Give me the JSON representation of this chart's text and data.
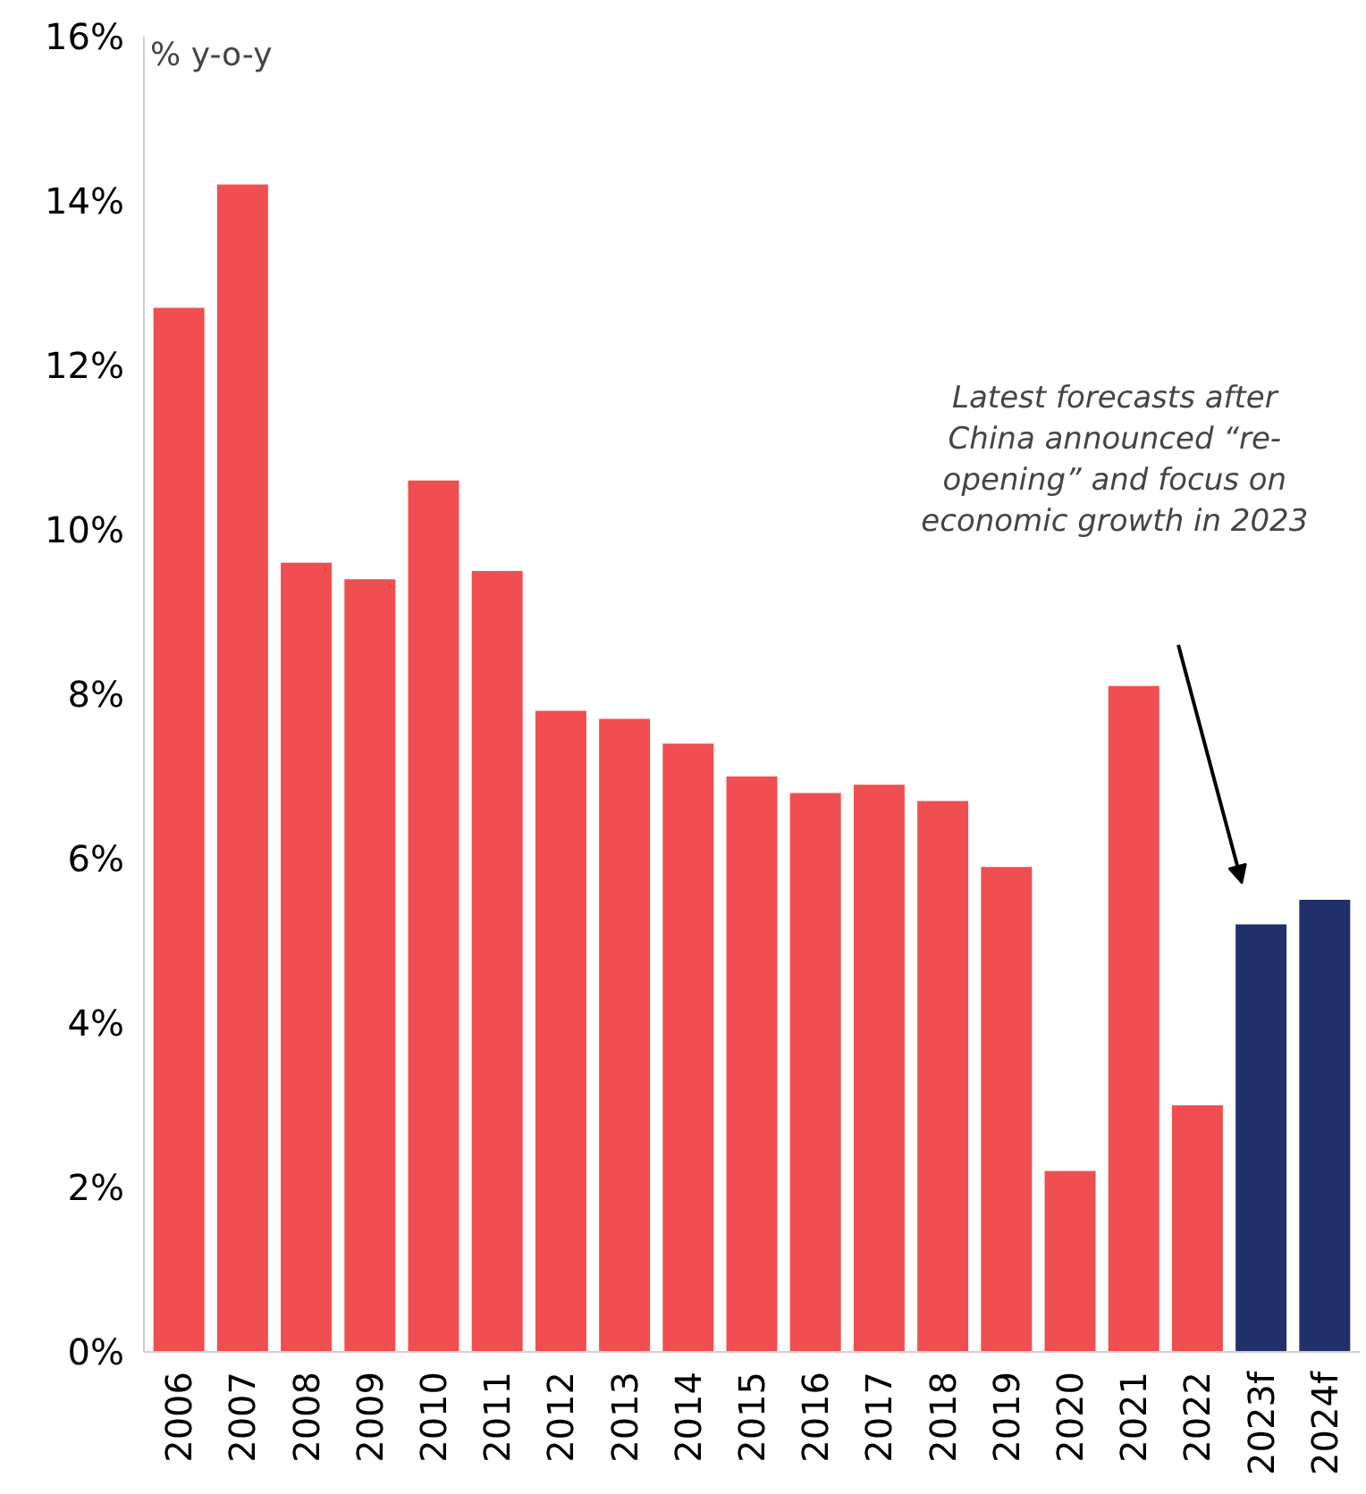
{
  "chart_data": {
    "type": "bar",
    "ylabel": "% y-o-y",
    "categories": [
      "2006",
      "2007",
      "2008",
      "2009",
      "2010",
      "2011",
      "2012",
      "2013",
      "2014",
      "2015",
      "2016",
      "2017",
      "2018",
      "2019",
      "2020",
      "2021",
      "2022",
      "2023f",
      "2024f"
    ],
    "values": [
      12.7,
      14.2,
      9.6,
      9.4,
      10.6,
      9.5,
      7.8,
      7.7,
      7.4,
      7.0,
      6.8,
      6.9,
      6.7,
      5.9,
      2.2,
      8.1,
      3.0,
      5.2,
      5.5
    ],
    "colors": [
      "#f04e50",
      "#f04e50",
      "#f04e50",
      "#f04e50",
      "#f04e50",
      "#f04e50",
      "#f04e50",
      "#f04e50",
      "#f04e50",
      "#f04e50",
      "#f04e50",
      "#f04e50",
      "#f04e50",
      "#f04e50",
      "#f04e50",
      "#f04e50",
      "#f04e50",
      "#21306b",
      "#21306b"
    ],
    "ylim": [
      0,
      16
    ],
    "yticks": [
      {
        "value": 0,
        "label": "0%"
      },
      {
        "value": 2,
        "label": "2%"
      },
      {
        "value": 4,
        "label": "4%"
      },
      {
        "value": 6,
        "label": "6%"
      },
      {
        "value": 8,
        "label": "8%"
      },
      {
        "value": 10,
        "label": "10%"
      },
      {
        "value": 12,
        "label": "12%"
      },
      {
        "value": 14,
        "label": "14%"
      },
      {
        "value": 16,
        "label": "16%"
      }
    ],
    "grid": false,
    "annotations": [
      "Latest forecasts after China announced “re-opening” and focus on economic growth in 2023"
    ]
  }
}
